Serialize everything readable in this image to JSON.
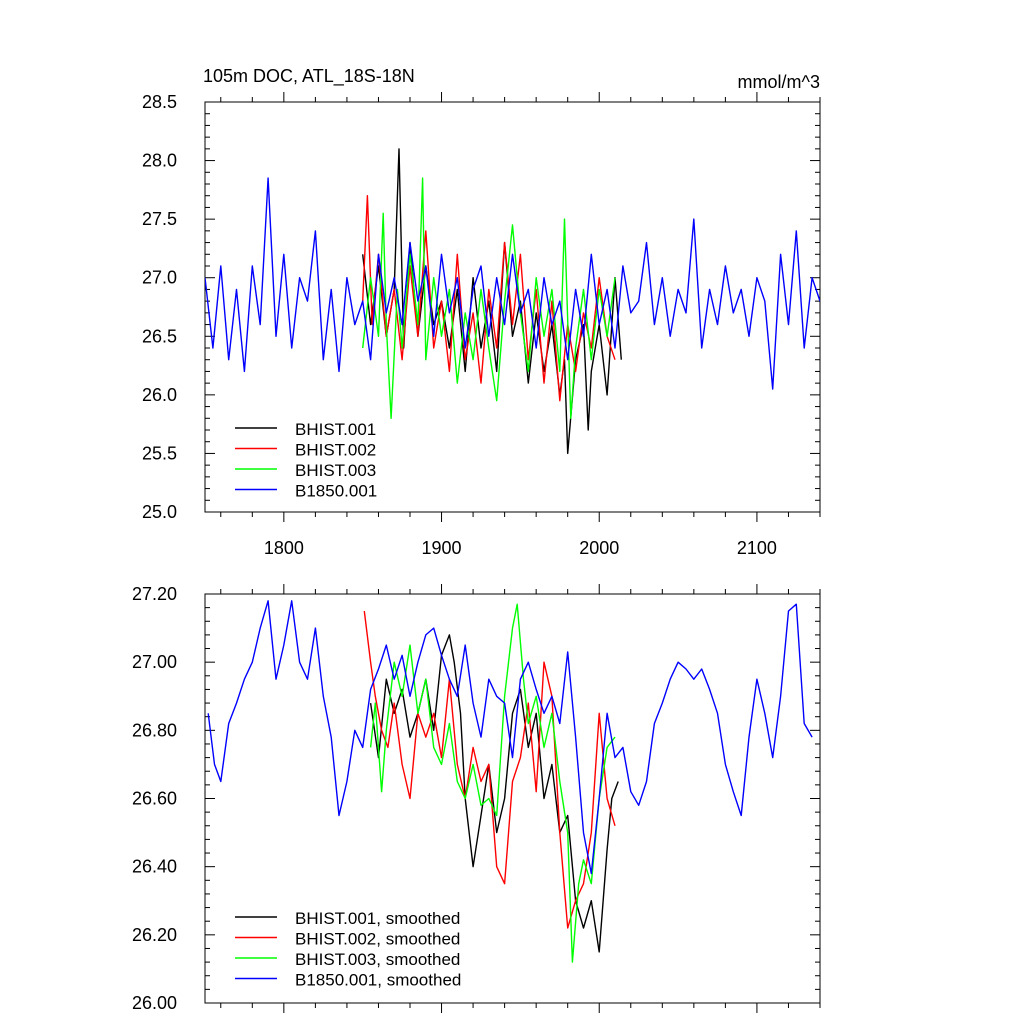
{
  "chart_data": [
    {
      "type": "line",
      "title": "105m DOC, ATL_18S-18N",
      "units": "mmol/m^3",
      "xlim": [
        1750,
        2140
      ],
      "ylim": [
        25.0,
        28.5
      ],
      "x_ticks": [
        1800,
        1900,
        2000,
        2100
      ],
      "x_tick_labels": [
        "1800",
        "1900",
        "2000",
        "2100"
      ],
      "y_ticks": [
        25.0,
        25.5,
        26.0,
        26.5,
        27.0,
        27.5,
        28.0,
        28.5
      ],
      "y_tick_labels": [
        "25.0",
        "25.5",
        "26.0",
        "26.5",
        "27.0",
        "27.5",
        "28.0",
        "28.5"
      ],
      "legend_position": "bottom-left",
      "series": [
        {
          "name": "BHIST.001",
          "color": "#000000",
          "x": [
            1850,
            1855,
            1860,
            1865,
            1870,
            1873,
            1876,
            1880,
            1885,
            1890,
            1895,
            1900,
            1905,
            1910,
            1915,
            1920,
            1925,
            1930,
            1935,
            1940,
            1945,
            1950,
            1955,
            1960,
            1965,
            1970,
            1975,
            1978,
            1980,
            1985,
            1990,
            1993,
            1995,
            2000,
            2005,
            2010,
            2014
          ],
          "y": [
            27.2,
            26.6,
            27.1,
            26.5,
            26.9,
            28.1,
            26.4,
            27.3,
            26.5,
            27.1,
            26.6,
            26.8,
            26.4,
            26.9,
            26.2,
            27.0,
            26.4,
            26.8,
            26.2,
            27.3,
            26.5,
            26.8,
            26.1,
            26.7,
            26.2,
            26.6,
            26.0,
            26.3,
            25.5,
            26.3,
            26.6,
            25.7,
            26.2,
            26.6,
            26.0,
            27.0,
            26.3
          ]
        },
        {
          "name": "BHIST.002",
          "color": "#ff0000",
          "x": [
            1850,
            1853,
            1856,
            1860,
            1865,
            1870,
            1875,
            1880,
            1885,
            1890,
            1895,
            1900,
            1905,
            1910,
            1915,
            1920,
            1925,
            1930,
            1935,
            1940,
            1945,
            1950,
            1955,
            1960,
            1965,
            1970,
            1975,
            1980,
            1985,
            1990,
            1995,
            2000,
            2005,
            2010
          ],
          "y": [
            26.8,
            27.7,
            26.6,
            27.2,
            26.5,
            26.9,
            26.3,
            27.1,
            26.5,
            27.4,
            26.4,
            26.8,
            26.2,
            27.2,
            26.3,
            26.7,
            26.1,
            26.9,
            26.4,
            27.3,
            26.6,
            27.2,
            26.3,
            26.9,
            26.1,
            26.8,
            25.95,
            26.6,
            26.2,
            26.7,
            26.4,
            27.0,
            26.5,
            26.3
          ]
        },
        {
          "name": "BHIST.003",
          "color": "#00ff00",
          "x": [
            1850,
            1855,
            1860,
            1863,
            1865,
            1868,
            1872,
            1875,
            1880,
            1885,
            1888,
            1890,
            1895,
            1900,
            1905,
            1910,
            1915,
            1920,
            1925,
            1930,
            1935,
            1940,
            1945,
            1950,
            1955,
            1960,
            1965,
            1970,
            1975,
            1978,
            1982,
            1985,
            1990,
            1995,
            2000,
            2005,
            2010
          ],
          "y": [
            26.4,
            27.0,
            26.5,
            27.55,
            26.6,
            25.8,
            26.9,
            26.4,
            27.2,
            26.6,
            27.85,
            26.3,
            27.0,
            26.5,
            26.9,
            26.1,
            26.7,
            26.3,
            26.9,
            26.4,
            25.95,
            26.8,
            27.45,
            26.7,
            26.2,
            27.0,
            26.5,
            26.9,
            26.2,
            27.5,
            25.8,
            26.4,
            26.9,
            26.3,
            26.9,
            26.5,
            27.0
          ]
        },
        {
          "name": "B1850.001",
          "color": "#0000ff",
          "x": [
            1750,
            1755,
            1760,
            1765,
            1770,
            1775,
            1780,
            1785,
            1790,
            1795,
            1800,
            1805,
            1810,
            1815,
            1820,
            1825,
            1830,
            1835,
            1840,
            1845,
            1850,
            1855,
            1860,
            1865,
            1870,
            1875,
            1880,
            1885,
            1890,
            1895,
            1900,
            1905,
            1910,
            1915,
            1920,
            1925,
            1930,
            1935,
            1940,
            1945,
            1950,
            1955,
            1960,
            1965,
            1970,
            1975,
            1980,
            1985,
            1990,
            1995,
            2000,
            2005,
            2010,
            2015,
            2020,
            2025,
            2030,
            2035,
            2040,
            2045,
            2050,
            2055,
            2060,
            2065,
            2070,
            2075,
            2080,
            2085,
            2090,
            2095,
            2100,
            2105,
            2110,
            2115,
            2120,
            2125,
            2130,
            2135,
            2140
          ],
          "y": [
            27.0,
            26.4,
            27.1,
            26.3,
            26.9,
            26.2,
            27.1,
            26.6,
            27.85,
            26.5,
            27.2,
            26.4,
            27.0,
            26.8,
            27.4,
            26.3,
            26.9,
            26.2,
            27.0,
            26.6,
            26.8,
            26.3,
            27.2,
            26.7,
            27.0,
            26.6,
            27.3,
            26.8,
            27.1,
            26.5,
            27.2,
            26.7,
            27.0,
            26.4,
            26.9,
            27.1,
            26.5,
            27.0,
            26.6,
            27.2,
            26.7,
            26.9,
            26.4,
            27.0,
            26.6,
            26.8,
            26.3,
            26.9,
            26.5,
            27.2,
            26.6,
            26.9,
            26.4,
            27.1,
            26.7,
            26.8,
            27.3,
            26.6,
            27.0,
            26.5,
            26.9,
            26.7,
            27.5,
            26.4,
            26.9,
            26.6,
            27.1,
            26.7,
            26.9,
            26.5,
            27.0,
            26.8,
            26.05,
            27.2,
            26.6,
            27.4,
            26.4,
            27.0,
            26.8
          ]
        }
      ]
    },
    {
      "type": "line",
      "title": "",
      "xlim": [
        1750,
        2140
      ],
      "ylim": [
        26.0,
        27.2
      ],
      "x_ticks": [
        1800,
        1900,
        2000,
        2100
      ],
      "x_tick_labels": [
        "",
        "",
        "",
        ""
      ],
      "y_ticks": [
        26.0,
        26.2,
        26.4,
        26.6,
        26.8,
        27.0,
        27.2
      ],
      "y_tick_labels": [
        "26.00",
        "26.20",
        "26.40",
        "26.60",
        "26.80",
        "27.00",
        "27.20"
      ],
      "legend_position": "bottom-left",
      "series": [
        {
          "name": "BHIST.001, smoothed",
          "color": "#000000",
          "x": [
            1855,
            1860,
            1865,
            1870,
            1875,
            1880,
            1885,
            1890,
            1895,
            1900,
            1905,
            1908,
            1912,
            1915,
            1920,
            1925,
            1930,
            1935,
            1940,
            1945,
            1950,
            1955,
            1960,
            1965,
            1970,
            1975,
            1980,
            1985,
            1990,
            1995,
            2000,
            2005,
            2008,
            2012
          ],
          "y": [
            26.88,
            26.72,
            26.95,
            26.85,
            26.92,
            26.78,
            26.85,
            26.95,
            26.8,
            27.02,
            27.08,
            27.0,
            26.85,
            26.6,
            26.4,
            26.55,
            26.7,
            26.5,
            26.6,
            26.85,
            26.92,
            26.75,
            26.85,
            26.6,
            26.7,
            26.5,
            26.55,
            26.3,
            26.22,
            26.3,
            26.15,
            26.45,
            26.6,
            26.65
          ]
        },
        {
          "name": "BHIST.002, smoothed",
          "color": "#ff0000",
          "x": [
            1851,
            1855,
            1858,
            1862,
            1866,
            1870,
            1875,
            1880,
            1885,
            1890,
            1895,
            1900,
            1905,
            1910,
            1915,
            1920,
            1925,
            1930,
            1935,
            1940,
            1945,
            1950,
            1955,
            1960,
            1965,
            1970,
            1975,
            1980,
            1985,
            1990,
            1995,
            2000,
            2005,
            2010
          ],
          "y": [
            27.15,
            27.0,
            26.9,
            26.8,
            26.75,
            26.88,
            26.7,
            26.6,
            26.85,
            26.78,
            26.85,
            26.72,
            26.95,
            26.7,
            26.6,
            26.75,
            26.65,
            26.7,
            26.4,
            26.35,
            26.65,
            26.72,
            26.88,
            26.62,
            27.0,
            26.9,
            26.5,
            26.22,
            26.3,
            26.35,
            26.5,
            26.85,
            26.6,
            26.52
          ]
        },
        {
          "name": "BHIST.003, smoothed",
          "color": "#00ff00",
          "x": [
            1855,
            1858,
            1862,
            1865,
            1870,
            1875,
            1880,
            1885,
            1890,
            1895,
            1900,
            1905,
            1910,
            1915,
            1920,
            1925,
            1930,
            1935,
            1940,
            1945,
            1948,
            1952,
            1955,
            1960,
            1965,
            1970,
            1975,
            1980,
            1983,
            1987,
            1990,
            1995,
            2000,
            2005,
            2010
          ],
          "y": [
            26.75,
            26.88,
            26.62,
            26.8,
            27.0,
            26.9,
            27.05,
            26.85,
            26.95,
            26.75,
            26.7,
            26.82,
            26.65,
            26.6,
            26.7,
            26.58,
            26.6,
            26.55,
            26.9,
            27.1,
            27.17,
            26.95,
            26.82,
            26.9,
            26.75,
            26.85,
            26.65,
            26.5,
            26.12,
            26.35,
            26.42,
            26.35,
            26.6,
            26.75,
            26.78
          ]
        },
        {
          "name": "B1850.001, smoothed",
          "color": "#0000ff",
          "x": [
            1752,
            1756,
            1760,
            1765,
            1770,
            1775,
            1780,
            1785,
            1790,
            1795,
            1800,
            1805,
            1810,
            1815,
            1820,
            1825,
            1830,
            1835,
            1840,
            1845,
            1850,
            1855,
            1860,
            1865,
            1870,
            1875,
            1880,
            1885,
            1890,
            1895,
            1900,
            1905,
            1910,
            1915,
            1920,
            1925,
            1930,
            1935,
            1940,
            1945,
            1950,
            1955,
            1960,
            1965,
            1970,
            1975,
            1980,
            1985,
            1990,
            1995,
            2000,
            2005,
            2010,
            2015,
            2020,
            2025,
            2030,
            2035,
            2040,
            2045,
            2050,
            2055,
            2060,
            2065,
            2070,
            2075,
            2080,
            2085,
            2090,
            2095,
            2100,
            2105,
            2110,
            2115,
            2120,
            2125,
            2130,
            2135
          ],
          "y": [
            26.85,
            26.7,
            26.65,
            26.82,
            26.88,
            26.95,
            27.0,
            27.1,
            27.18,
            26.95,
            27.05,
            27.18,
            27.0,
            26.95,
            27.1,
            26.9,
            26.78,
            26.55,
            26.65,
            26.8,
            26.75,
            26.92,
            26.98,
            27.05,
            26.95,
            27.02,
            26.9,
            27.0,
            27.08,
            27.1,
            27.02,
            26.95,
            26.9,
            27.05,
            26.88,
            26.78,
            26.95,
            26.9,
            26.88,
            26.72,
            26.95,
            27.0,
            26.92,
            26.85,
            26.9,
            26.82,
            27.03,
            26.78,
            26.5,
            26.38,
            26.6,
            26.85,
            26.72,
            26.75,
            26.62,
            26.58,
            26.65,
            26.82,
            26.88,
            26.95,
            27.0,
            26.98,
            26.95,
            26.98,
            26.92,
            26.85,
            26.7,
            26.62,
            26.55,
            26.78,
            26.95,
            26.85,
            26.72,
            26.9,
            27.15,
            27.17,
            26.82,
            26.78
          ]
        }
      ]
    }
  ]
}
